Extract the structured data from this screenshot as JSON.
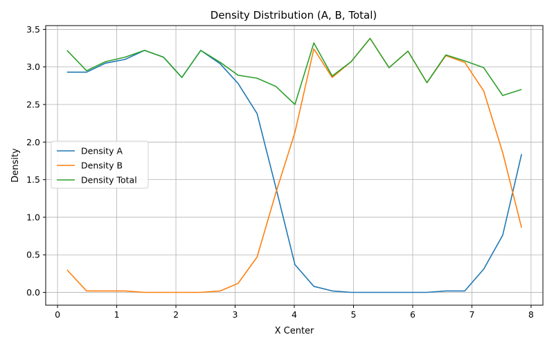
{
  "chart_data": {
    "type": "line",
    "title": "Density Distribution (A, B, Total)",
    "xlabel": "X Center",
    "ylabel": "Density",
    "xlim": [
      -0.2,
      8.2
    ],
    "ylim": [
      -0.17,
      3.55
    ],
    "xticks": [
      0,
      1,
      2,
      3,
      4,
      5,
      6,
      7,
      8
    ],
    "xtick_labels": [
      "0",
      "1",
      "2",
      "3",
      "4",
      "5",
      "6",
      "7",
      "8"
    ],
    "yticks": [
      0.0,
      0.5,
      1.0,
      1.5,
      2.0,
      2.5,
      3.0,
      3.5
    ],
    "ytick_labels": [
      "0.0",
      "0.5",
      "1.0",
      "1.5",
      "2.0",
      "2.5",
      "3.0",
      "3.5"
    ],
    "grid": true,
    "legend_position": "center-left",
    "x": [
      0.16,
      0.49,
      0.81,
      1.14,
      1.47,
      1.79,
      2.1,
      2.42,
      2.75,
      3.05,
      3.37,
      3.69,
      4.01,
      4.33,
      4.64,
      4.96,
      5.28,
      5.6,
      5.92,
      6.24,
      6.56,
      6.88,
      7.2,
      7.52,
      7.84
    ],
    "series": [
      {
        "name": "Density A",
        "color": "#1f77b4",
        "values": [
          2.93,
          2.93,
          3.05,
          3.1,
          3.22,
          3.13,
          2.86,
          3.22,
          3.04,
          2.78,
          2.38,
          1.39,
          0.37,
          0.08,
          0.02,
          0.0,
          0.0,
          0.0,
          0.0,
          0.0,
          0.02,
          0.02,
          0.31,
          0.76,
          1.84
        ]
      },
      {
        "name": "Density B",
        "color": "#ff7f0e",
        "values": [
          0.3,
          0.02,
          0.02,
          0.02,
          0.0,
          0.0,
          0.0,
          0.0,
          0.02,
          0.12,
          0.47,
          1.33,
          2.13,
          3.24,
          2.86,
          3.07,
          3.38,
          2.99,
          3.21,
          2.79,
          3.15,
          3.06,
          2.68,
          1.86,
          0.86
        ]
      },
      {
        "name": "Density Total",
        "color": "#2ca02c",
        "values": [
          3.22,
          2.95,
          3.07,
          3.13,
          3.22,
          3.13,
          2.86,
          3.22,
          3.06,
          2.89,
          2.85,
          2.74,
          2.5,
          3.32,
          2.88,
          3.07,
          3.38,
          2.99,
          3.21,
          2.79,
          3.16,
          3.08,
          2.99,
          2.62,
          2.7
        ]
      }
    ]
  }
}
